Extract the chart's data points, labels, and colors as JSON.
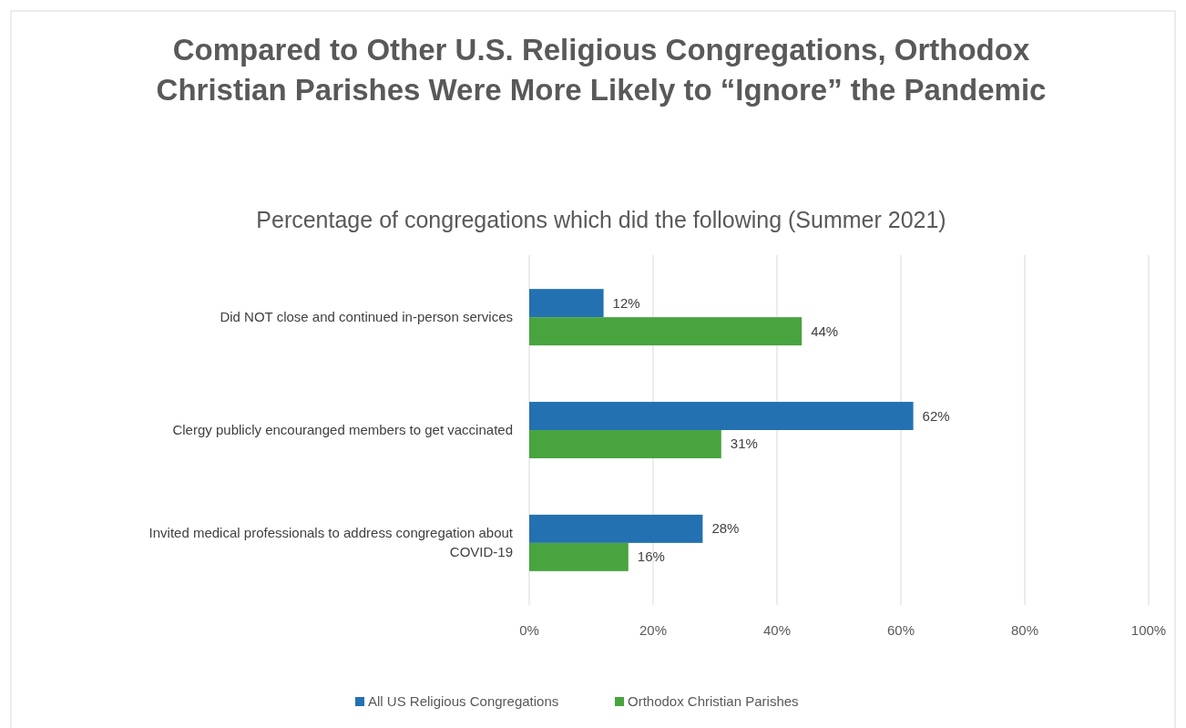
{
  "chart_data": {
    "type": "bar",
    "orientation": "horizontal",
    "title": "Compared to Other U.S. Religious Congregations, Orthodox Christian Parishes Were More Likely to “Ignore” the Pandemic",
    "subtitle": "Percentage of congregations which did the following (Summer 2021)",
    "categories": [
      "Did NOT close and continued in-person services",
      "Clergy publicly encouranged members to get vaccinated",
      "Invited medical professionals to address congregation about COVID-19"
    ],
    "series": [
      {
        "name": "All US Religious Congregations",
        "color": "#2471b1",
        "values": [
          12,
          62,
          28
        ],
        "value_labels": [
          "12%",
          "62%",
          "28%"
        ]
      },
      {
        "name": "Orthodox Christian Parishes",
        "color": "#48a43f",
        "values": [
          44,
          31,
          16
        ],
        "value_labels": [
          "44%",
          "31%",
          "16%"
        ]
      }
    ],
    "xlim": [
      0,
      100
    ],
    "xticks": [
      {
        "value": 0,
        "label": "0%"
      },
      {
        "value": 20,
        "label": "20%"
      },
      {
        "value": 40,
        "label": "40%"
      },
      {
        "value": 60,
        "label": "60%"
      },
      {
        "value": 80,
        "label": "80%"
      },
      {
        "value": 100,
        "label": "100%"
      }
    ],
    "grid": "x",
    "legend": "bottom"
  }
}
